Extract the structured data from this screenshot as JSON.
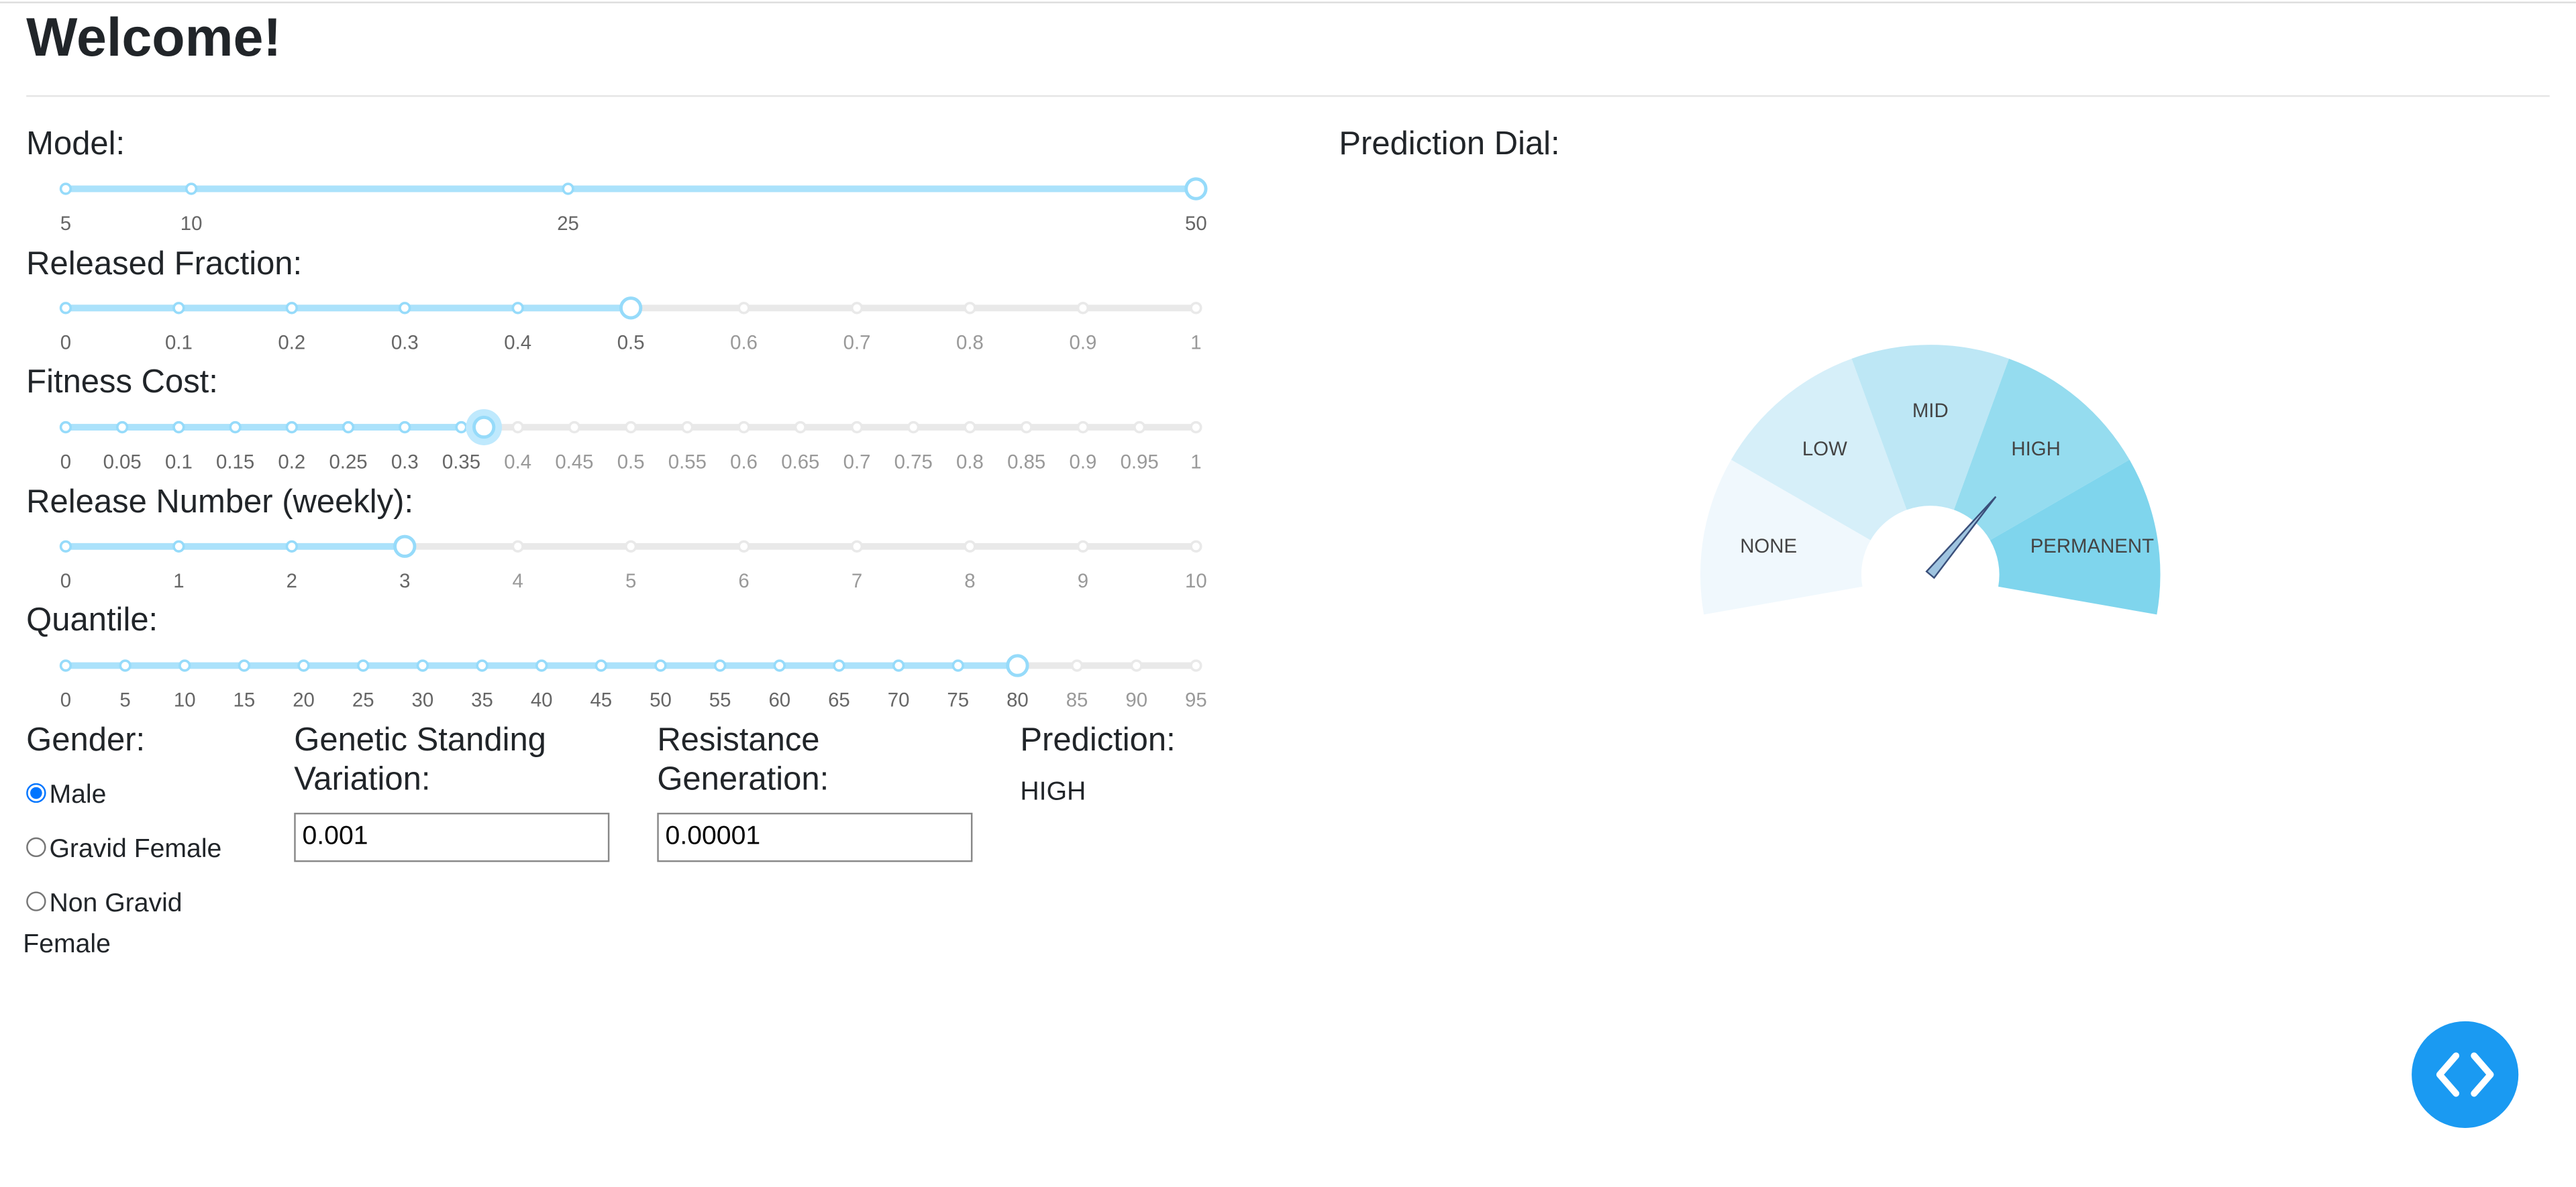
{
  "header": {
    "title": "Welcome!"
  },
  "sliders": [
    {
      "label": "Model:",
      "marks": [
        5,
        10,
        25,
        50
      ],
      "value": 50
    },
    {
      "label": "Released Fraction:",
      "marks": [
        0,
        0.1,
        0.2,
        0.3,
        0.4,
        0.5,
        0.6,
        0.7,
        0.8,
        0.9,
        1
      ],
      "value": 0.5
    },
    {
      "label": "Fitness Cost:",
      "marks": [
        0,
        0.05,
        0.1,
        0.15,
        0.2,
        0.25,
        0.3,
        0.35,
        0.4,
        0.45,
        0.5,
        0.55,
        0.6,
        0.65,
        0.7,
        0.75,
        0.8,
        0.85,
        0.9,
        0.95,
        1
      ],
      "value": 0.37
    },
    {
      "label": "Release Number (weekly):",
      "marks": [
        0,
        1,
        2,
        3,
        4,
        5,
        6,
        7,
        8,
        9,
        10
      ],
      "value": 3
    },
    {
      "label": "Quantile:",
      "marks": [
        0,
        5,
        10,
        15,
        20,
        25,
        30,
        35,
        40,
        45,
        50,
        55,
        60,
        65,
        70,
        75,
        80,
        85,
        90,
        95
      ],
      "value": 80
    }
  ],
  "gender": {
    "label": "Gender:",
    "options": [
      "Male",
      "Gravid Female",
      "Non Gravid Female"
    ],
    "selected": 0
  },
  "genetic": {
    "label": "Genetic Standing Variation:",
    "value": "0.001"
  },
  "resistance": {
    "label": "Resistance Generation:",
    "value": "0.00001"
  },
  "prediction": {
    "label": "Prediction:",
    "value": "HIGH"
  },
  "dial": {
    "title": "Prediction Dial:",
    "sectors": [
      {
        "label": "NONE",
        "color": "#f0f8fd"
      },
      {
        "label": "LOW",
        "color": "#d6eff9"
      },
      {
        "label": "MID",
        "color": "#bde7f5"
      },
      {
        "label": "HIGH",
        "color": "#95dcef"
      },
      {
        "label": "PERMANENT",
        "color": "#7fd5ed"
      }
    ],
    "needle": 3.5
  }
}
